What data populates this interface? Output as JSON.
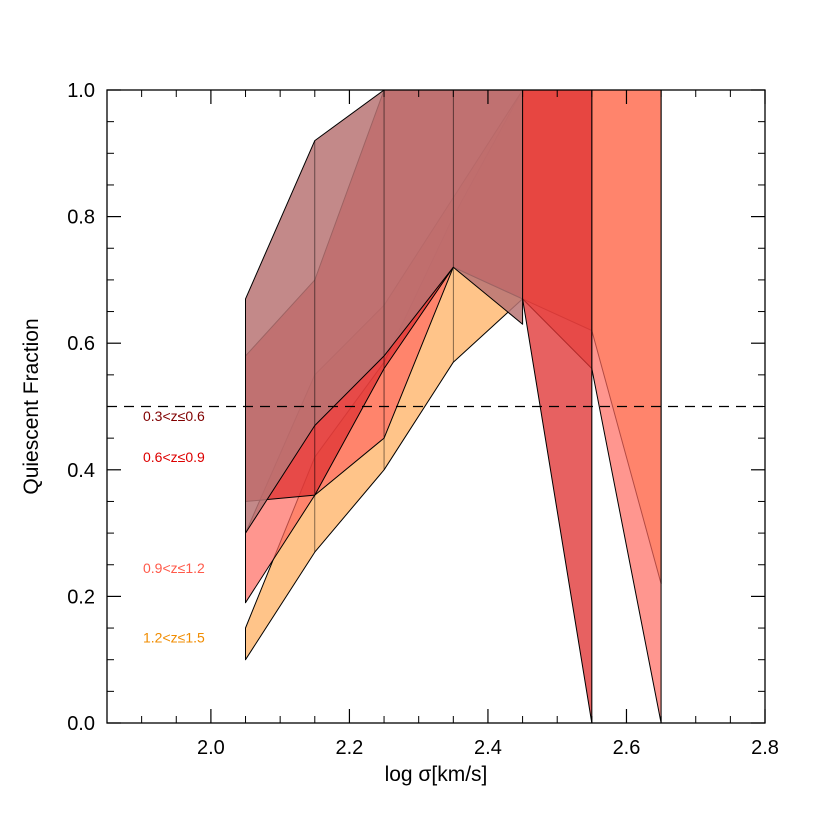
{
  "chart_data": {
    "type": "area",
    "title": "",
    "xlabel": "log σ[km/s]",
    "ylabel": "Quiescent Fraction",
    "xlim": [
      1.85,
      2.8
    ],
    "ylim": [
      0.0,
      1.0
    ],
    "xticks": [
      2.0,
      2.2,
      2.4,
      2.6,
      2.8
    ],
    "xtick_labels": [
      "2.0",
      "2.2",
      "2.4",
      "2.6",
      "2.8"
    ],
    "yticks": [
      0.0,
      0.2,
      0.4,
      0.6,
      0.8,
      1.0
    ],
    "ytick_labels": [
      "0.0",
      "0.2",
      "0.4",
      "0.6",
      "0.8",
      "1.0"
    ],
    "reference_line": {
      "y": 0.5,
      "style": "dashed"
    },
    "series": [
      {
        "name": "0.3<z≤0.6",
        "color": "#800000",
        "fill": "#b87474",
        "x": [
          2.05,
          2.15,
          2.25,
          2.35,
          2.45
        ],
        "lower": [
          0.3,
          0.47,
          0.58,
          0.72,
          0.63
        ],
        "upper": [
          0.67,
          0.92,
          1.0,
          1.0,
          1.0
        ]
      },
      {
        "name": "0.6<z≤0.9",
        "color": "#dd0000",
        "fill": "#e03434",
        "x": [
          2.05,
          2.15,
          2.25,
          2.35,
          2.45,
          2.55
        ],
        "lower": [
          0.35,
          0.36,
          0.56,
          0.72,
          0.67,
          0.0
        ],
        "upper": [
          0.58,
          0.7,
          1.0,
          1.0,
          1.0,
          1.0
        ]
      },
      {
        "name": "0.9<z≤1.2",
        "color": "#ff5a4a",
        "fill": "#ff6a60",
        "x": [
          2.05,
          2.15,
          2.25,
          2.35,
          2.45,
          2.55,
          2.65
        ],
        "lower": [
          0.19,
          0.36,
          0.45,
          0.72,
          0.67,
          0.56,
          0.0
        ],
        "upper": [
          0.3,
          0.55,
          0.66,
          0.83,
          1.0,
          1.0,
          1.0
        ]
      },
      {
        "name": "1.2<z≤1.5",
        "color": "#f08c00",
        "fill": "#ff9d3a",
        "x": [
          2.05,
          2.15,
          2.25,
          2.35,
          2.45,
          2.55,
          2.65
        ],
        "lower": [
          0.1,
          0.27,
          0.4,
          0.57,
          0.67,
          0.62,
          0.22
        ],
        "upper": [
          0.15,
          0.42,
          0.57,
          0.8,
          1.0,
          1.0,
          1.0
        ]
      }
    ],
    "legend_position": "left"
  }
}
